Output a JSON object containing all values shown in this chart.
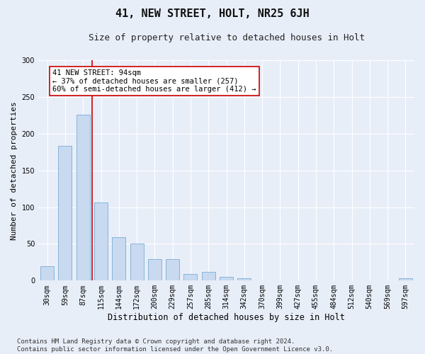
{
  "title1": "41, NEW STREET, HOLT, NR25 6JH",
  "title2": "Size of property relative to detached houses in Holt",
  "xlabel": "Distribution of detached houses by size in Holt",
  "ylabel": "Number of detached properties",
  "bin_labels": [
    "30sqm",
    "59sqm",
    "87sqm",
    "115sqm",
    "144sqm",
    "172sqm",
    "200sqm",
    "229sqm",
    "257sqm",
    "285sqm",
    "314sqm",
    "342sqm",
    "370sqm",
    "399sqm",
    "427sqm",
    "455sqm",
    "484sqm",
    "512sqm",
    "540sqm",
    "569sqm",
    "597sqm"
  ],
  "bar_values": [
    20,
    184,
    226,
    106,
    59,
    50,
    29,
    29,
    9,
    12,
    5,
    3,
    0,
    0,
    0,
    0,
    0,
    0,
    0,
    0,
    3
  ],
  "bar_color": "#c8d9f0",
  "bar_edge_color": "#7aadd4",
  "vline_x_idx": 2.5,
  "vline_color": "#cc0000",
  "annotation_text": "41 NEW STREET: 94sqm\n← 37% of detached houses are smaller (257)\n60% of semi-detached houses are larger (412) →",
  "annotation_box_color": "#ffffff",
  "annotation_box_edge": "#cc0000",
  "ylim": [
    0,
    300
  ],
  "yticks": [
    0,
    50,
    100,
    150,
    200,
    250,
    300
  ],
  "footer": "Contains HM Land Registry data © Crown copyright and database right 2024.\nContains public sector information licensed under the Open Government Licence v3.0.",
  "bg_color": "#e8eef8",
  "plot_bg_color": "#e8eef8",
  "grid_color": "#ffffff",
  "title1_fontsize": 11,
  "title2_fontsize": 9,
  "xlabel_fontsize": 8.5,
  "ylabel_fontsize": 8,
  "tick_fontsize": 7,
  "footer_fontsize": 6.5,
  "annotation_fontsize": 7.5
}
